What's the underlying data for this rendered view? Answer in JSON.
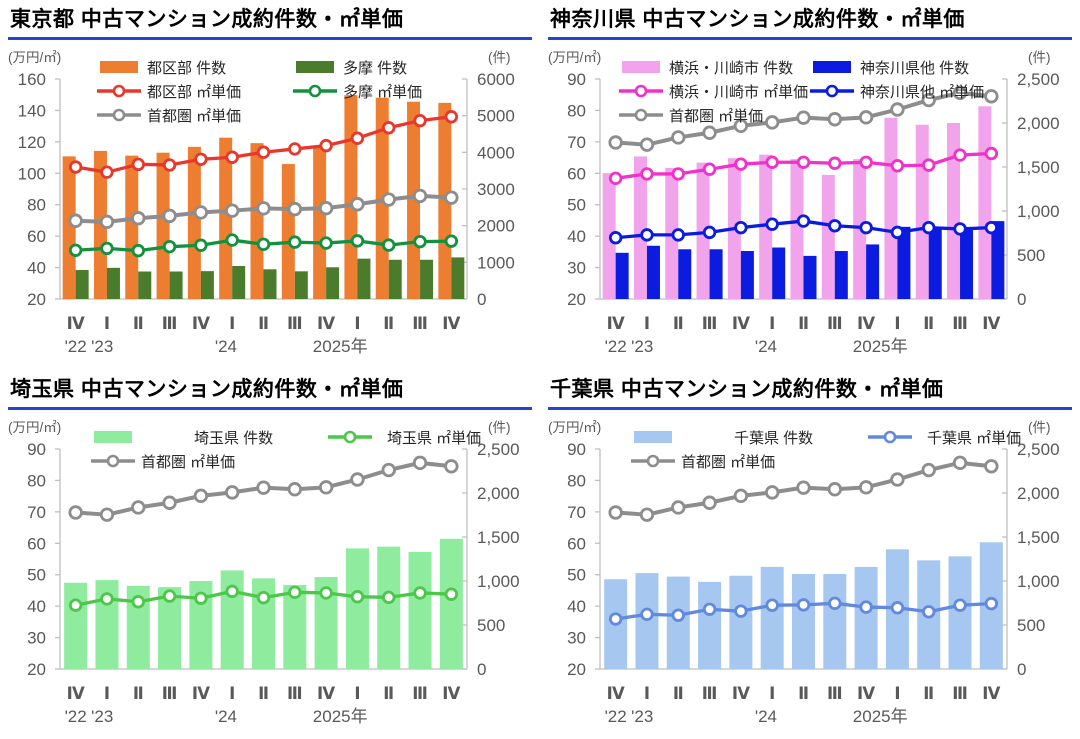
{
  "palette": {
    "title_underline": "#2346D2",
    "axis_line": "#BFBFBF",
    "axis_text": "#595959",
    "legend_text": "#262626"
  },
  "chart_data": [
    {
      "type": "combo_bar_line",
      "region": "東京都",
      "title": "東京都 中古マンション成約件数・㎡単価",
      "unit_left": "(万円/㎡)",
      "unit_right": "(件)",
      "left_axis": {
        "min": 20,
        "max": 160,
        "step": 20,
        "comma": false
      },
      "right_axis": {
        "min": 0,
        "max": 6000,
        "step": 1000,
        "comma": false
      },
      "categories": [
        "Ⅳ",
        "Ⅰ",
        "Ⅱ",
        "Ⅲ",
        "Ⅳ",
        "Ⅰ",
        "Ⅱ",
        "Ⅲ",
        "Ⅳ",
        "Ⅰ",
        "Ⅱ",
        "Ⅲ",
        "Ⅳ"
      ],
      "year_labels": [
        {
          "pos": 0,
          "label": "'22"
        },
        {
          "pos": 0.85,
          "label": "'23"
        },
        {
          "pos": 4.8,
          "label": "'24"
        },
        {
          "pos": 8.45,
          "label": "2025年"
        }
      ],
      "bar_series": [
        {
          "name": "都区部 件数",
          "color": "#ED7D31",
          "axis": "right",
          "values": [
            3890,
            4040,
            3910,
            3990,
            4150,
            4400,
            4250,
            3680,
            4130,
            5560,
            5490,
            5380,
            5350
          ]
        },
        {
          "name": "多摩 件数",
          "color": "#4A7C2B",
          "axis": "right",
          "values": [
            790,
            850,
            750,
            750,
            760,
            900,
            810,
            755,
            865,
            1100,
            1070,
            1070,
            1135
          ]
        }
      ],
      "line_series": [
        {
          "name": "都区部 ㎡単価",
          "color": "#E8382C",
          "axis": "left",
          "emphasis": false,
          "values": [
            104.0,
            100.7,
            105.7,
            105.3,
            108.9,
            110.2,
            113.4,
            115.5,
            117.6,
            122.3,
            129.0,
            133.5,
            136.0
          ]
        },
        {
          "name": "多摩 ㎡単価",
          "color": "#12923E",
          "axis": "left",
          "emphasis": false,
          "values": [
            51.0,
            52.2,
            50.8,
            53.3,
            54.2,
            57.5,
            54.8,
            56.2,
            55.6,
            57.0,
            54.3,
            56.5,
            56.8
          ]
        },
        {
          "name": "首都圏 ㎡単価",
          "color": "#8D8D8D",
          "axis": "left",
          "emphasis": true,
          "values": [
            69.8,
            69.1,
            71.4,
            72.9,
            75.1,
            76.2,
            77.7,
            77.2,
            77.8,
            80.3,
            83.3,
            85.6,
            84.5
          ]
        }
      ],
      "legend": {
        "style": "compact",
        "rows": [
          [
            {
              "kind": "bar",
              "color": "#ED7D31",
              "label": "都区部 件数"
            },
            {
              "kind": "bar",
              "color": "#4A7C2B",
              "label": "多摩 件数"
            }
          ],
          [
            {
              "kind": "line",
              "color": "#E8382C",
              "label": "都区部 ㎡単価"
            },
            {
              "kind": "line",
              "color": "#12923E",
              "label": "多摩 ㎡単価"
            }
          ],
          [
            {
              "kind": "line",
              "color": "#8D8D8D",
              "label": "首都圏 ㎡単価"
            }
          ]
        ]
      }
    },
    {
      "type": "combo_bar_line",
      "region": "神奈川県",
      "title": "神奈川県 中古マンション成約件数・㎡単価",
      "unit_left": "(万円/㎡)",
      "unit_right": "(件)",
      "left_axis": {
        "min": 20,
        "max": 90,
        "step": 10,
        "comma": false
      },
      "right_axis": {
        "min": 0,
        "max": 2500,
        "step": 500,
        "comma": true
      },
      "categories": [
        "Ⅳ",
        "Ⅰ",
        "Ⅱ",
        "Ⅲ",
        "Ⅳ",
        "Ⅰ",
        "Ⅱ",
        "Ⅲ",
        "Ⅳ",
        "Ⅰ",
        "Ⅱ",
        "Ⅲ",
        "Ⅳ"
      ],
      "year_labels": [
        {
          "pos": 0,
          "label": "'22"
        },
        {
          "pos": 0.85,
          "label": "'23"
        },
        {
          "pos": 4.8,
          "label": "'24"
        },
        {
          "pos": 8.45,
          "label": "2025年"
        }
      ],
      "bar_series": [
        {
          "name": "横浜・川崎市 件数",
          "color": "#F1A4EB",
          "axis": "right",
          "values": [
            1430,
            1620,
            1490,
            1550,
            1600,
            1640,
            1590,
            1410,
            1590,
            2060,
            1980,
            2000,
            2190
          ]
        },
        {
          "name": "神奈川県他 件数",
          "color": "#0B1BDF",
          "axis": "right",
          "values": [
            525,
            605,
            565,
            565,
            545,
            585,
            490,
            545,
            620,
            820,
            810,
            810,
            885
          ]
        }
      ],
      "line_series": [
        {
          "name": "横浜・川崎市 ㎡単価",
          "color": "#F131CA",
          "axis": "left",
          "emphasis": false,
          "values": [
            58.4,
            59.8,
            59.8,
            61.3,
            62.9,
            63.5,
            63.5,
            63.2,
            63.5,
            62.4,
            62.6,
            65.8,
            66.3
          ]
        },
        {
          "name": "神奈川県他 ㎡単価",
          "color": "#0B1BDF",
          "axis": "left",
          "emphasis": false,
          "values": [
            39.5,
            40.4,
            40.4,
            41.2,
            42.7,
            43.8,
            44.8,
            43.3,
            42.7,
            41.2,
            42.7,
            42.3,
            42.7
          ]
        },
        {
          "name": "首都圏 ㎡単価",
          "color": "#8D8D8D",
          "axis": "left",
          "emphasis": true,
          "values": [
            69.8,
            69.1,
            71.4,
            72.9,
            75.1,
            76.2,
            77.7,
            77.2,
            77.8,
            80.3,
            83.3,
            85.6,
            84.5
          ]
        }
      ],
      "legend": {
        "style": "compact",
        "rows": [
          [
            {
              "kind": "bar",
              "color": "#F1A4EB",
              "label": "横浜・川崎市 件数"
            },
            {
              "kind": "bar",
              "color": "#0B1BDF",
              "label": "神奈川県他 件数"
            }
          ],
          [
            {
              "kind": "line",
              "color": "#F131CA",
              "label": "横浜・川崎市 ㎡単価"
            },
            {
              "kind": "line",
              "color": "#0B1BDF",
              "label": "神奈川県他 ㎡単価"
            }
          ],
          [
            {
              "kind": "line",
              "color": "#8D8D8D",
              "label": "首都圏 ㎡単価"
            }
          ]
        ]
      }
    },
    {
      "type": "combo_bar_line",
      "region": "埼玉県",
      "title": "埼玉県 中古マンション成約件数・㎡単価",
      "unit_left": "(万円/㎡)",
      "unit_right": "(件)",
      "left_axis": {
        "min": 20,
        "max": 90,
        "step": 10,
        "comma": false
      },
      "right_axis": {
        "min": 0,
        "max": 2500,
        "step": 500,
        "comma": true
      },
      "categories": [
        "Ⅳ",
        "Ⅰ",
        "Ⅱ",
        "Ⅲ",
        "Ⅳ",
        "Ⅰ",
        "Ⅱ",
        "Ⅲ",
        "Ⅳ",
        "Ⅰ",
        "Ⅱ",
        "Ⅲ",
        "Ⅳ"
      ],
      "year_labels": [
        {
          "pos": 0,
          "label": "'22"
        },
        {
          "pos": 0.85,
          "label": "'23"
        },
        {
          "pos": 4.8,
          "label": "'24"
        },
        {
          "pos": 8.45,
          "label": "2025年"
        }
      ],
      "bar_series": [
        {
          "name": "埼玉県 件数",
          "color": "#8FEB9E",
          "axis": "right",
          "values": [
            980,
            1010,
            945,
            930,
            1000,
            1120,
            1030,
            955,
            1045,
            1370,
            1390,
            1330,
            1480
          ]
        }
      ],
      "line_series": [
        {
          "name": "埼玉県 ㎡単価",
          "color": "#4CC74A",
          "axis": "left",
          "emphasis": false,
          "values": [
            40.3,
            42.3,
            41.4,
            43.2,
            42.5,
            44.7,
            42.7,
            44.4,
            44.2,
            43.0,
            42.8,
            44.2,
            43.8
          ]
        },
        {
          "name": "首都圏 ㎡単価",
          "color": "#8D8D8D",
          "axis": "left",
          "emphasis": true,
          "values": [
            69.8,
            69.1,
            71.4,
            72.9,
            75.1,
            76.2,
            77.7,
            77.2,
            77.8,
            80.3,
            83.3,
            85.6,
            84.5
          ]
        }
      ],
      "legend": {
        "style": "spread",
        "rows": [
          [
            {
              "kind": "bar",
              "color": "#8FEB9E",
              "label": "埼玉県 件数"
            },
            {
              "kind": "line",
              "color": "#4CC74A",
              "label": "埼玉県 ㎡単価"
            }
          ],
          [
            {
              "kind": "line",
              "color": "#8D8D8D",
              "label": "首都圏 ㎡単価"
            }
          ]
        ]
      }
    },
    {
      "type": "combo_bar_line",
      "region": "千葉県",
      "title": "千葉県 中古マンション成約件数・㎡単価",
      "unit_left": "(万円/㎡)",
      "unit_right": "(件)",
      "left_axis": {
        "min": 20,
        "max": 90,
        "step": 10,
        "comma": false
      },
      "right_axis": {
        "min": 0,
        "max": 2500,
        "step": 500,
        "comma": true
      },
      "categories": [
        "Ⅳ",
        "Ⅰ",
        "Ⅱ",
        "Ⅲ",
        "Ⅳ",
        "Ⅰ",
        "Ⅱ",
        "Ⅲ",
        "Ⅳ",
        "Ⅰ",
        "Ⅱ",
        "Ⅲ",
        "Ⅳ"
      ],
      "year_labels": [
        {
          "pos": 0,
          "label": "'22"
        },
        {
          "pos": 0.85,
          "label": "'23"
        },
        {
          "pos": 4.8,
          "label": "'24"
        },
        {
          "pos": 8.45,
          "label": "2025年"
        }
      ],
      "bar_series": [
        {
          "name": "千葉県 件数",
          "color": "#A6C8F0",
          "axis": "right",
          "values": [
            1020,
            1090,
            1050,
            990,
            1060,
            1160,
            1080,
            1080,
            1160,
            1360,
            1235,
            1280,
            1440
          ]
        }
      ],
      "line_series": [
        {
          "name": "千葉県 ㎡単価",
          "color": "#6189DD",
          "axis": "left",
          "emphasis": false,
          "values": [
            35.9,
            37.4,
            37.1,
            39.0,
            38.4,
            40.3,
            40.4,
            40.9,
            39.7,
            39.5,
            38.2,
            40.3,
            40.8
          ]
        },
        {
          "name": "首都圏 ㎡単価",
          "color": "#8D8D8D",
          "axis": "left",
          "emphasis": true,
          "values": [
            69.8,
            69.1,
            71.4,
            72.9,
            75.1,
            76.2,
            77.7,
            77.2,
            77.8,
            80.3,
            83.3,
            85.6,
            84.5
          ]
        }
      ],
      "legend": {
        "style": "spread",
        "rows": [
          [
            {
              "kind": "bar",
              "color": "#A6C8F0",
              "label": "千葉県 件数"
            },
            {
              "kind": "line",
              "color": "#6189DD",
              "label": "千葉県 ㎡単価"
            }
          ],
          [
            {
              "kind": "line",
              "color": "#8D8D8D",
              "label": "首都圏 ㎡単価"
            }
          ]
        ]
      }
    }
  ]
}
